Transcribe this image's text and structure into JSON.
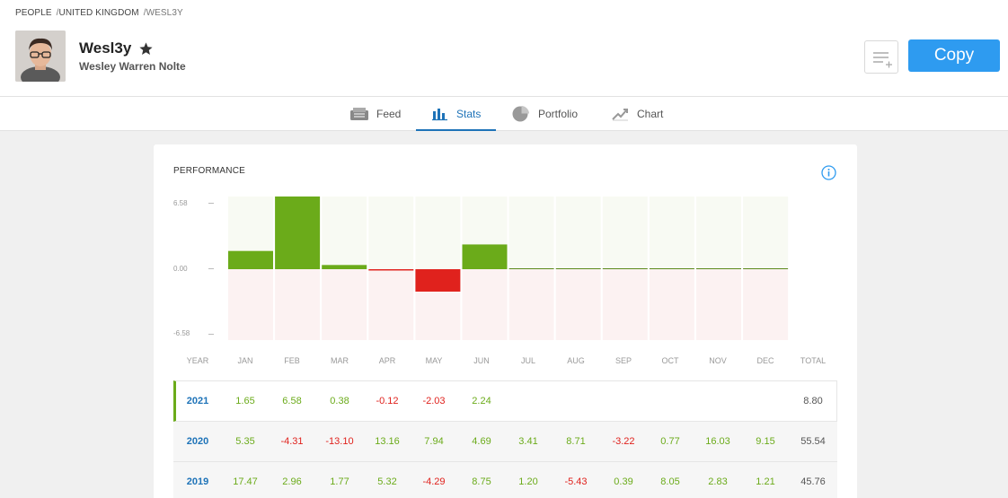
{
  "breadcrumb": {
    "item1": "PEOPLE",
    "item2": "UNITED KINGDOM",
    "current": "WESL3Y"
  },
  "profile": {
    "username": "Wesl3y",
    "fullname": "Wesley Warren Nolte",
    "star_icon": "star-icon"
  },
  "actions": {
    "copy_label": "Copy",
    "watchlist_icon": "add-to-watchlist-icon"
  },
  "tabs": [
    {
      "label": "Feed",
      "icon": "feed-icon"
    },
    {
      "label": "Stats",
      "icon": "stats-icon"
    },
    {
      "label": "Portfolio",
      "icon": "pie-icon"
    },
    {
      "label": "Chart",
      "icon": "chart-icon"
    }
  ],
  "performance": {
    "title": "PERFORMANCE",
    "info_icon": "info-icon"
  },
  "colors": {
    "accent": "#2e9bf0",
    "positive": "#6bab1a",
    "negative": "#e0221d",
    "link": "#1e73b8"
  },
  "chart_data": {
    "type": "bar",
    "categories": [
      "JAN",
      "FEB",
      "MAR",
      "APR",
      "MAY",
      "JUN",
      "JUL",
      "AUG",
      "SEP",
      "OCT",
      "NOV",
      "DEC"
    ],
    "values": [
      1.65,
      6.58,
      0.38,
      -0.12,
      -2.03,
      2.24,
      0,
      0,
      0,
      0,
      0,
      0
    ],
    "ylim": [
      -6.58,
      6.58
    ],
    "yticks": [
      "6.58",
      "0.00",
      "-6.58"
    ]
  },
  "table": {
    "headers": [
      "YEAR",
      "JAN",
      "FEB",
      "MAR",
      "APR",
      "MAY",
      "JUN",
      "JUL",
      "AUG",
      "SEP",
      "OCT",
      "NOV",
      "DEC",
      "TOTAL"
    ],
    "rows": [
      {
        "year": "2021",
        "values": [
          "1.65",
          "6.58",
          "0.38",
          "-0.12",
          "-2.03",
          "2.24",
          "",
          "",
          "",
          "",
          "",
          ""
        ],
        "total": "8.80"
      },
      {
        "year": "2020",
        "values": [
          "5.35",
          "-4.31",
          "-13.10",
          "13.16",
          "7.94",
          "4.69",
          "3.41",
          "8.71",
          "-3.22",
          "0.77",
          "16.03",
          "9.15"
        ],
        "total": "55.54"
      },
      {
        "year": "2019",
        "values": [
          "17.47",
          "2.96",
          "1.77",
          "5.32",
          "-4.29",
          "8.75",
          "1.20",
          "-5.43",
          "0.39",
          "8.05",
          "2.83",
          "1.21"
        ],
        "total": "45.76"
      }
    ]
  }
}
